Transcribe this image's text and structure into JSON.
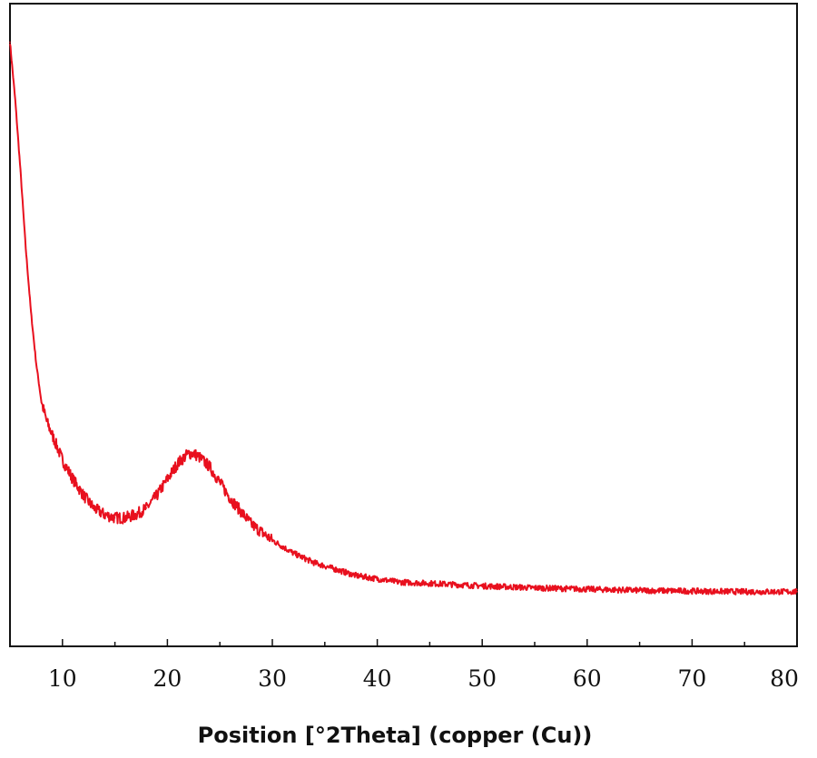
{
  "chart_data": {
    "type": "line",
    "title": "",
    "xlabel": "Position [°2Theta] (copper (Cu))",
    "ylabel": "",
    "xlim": [
      5,
      80
    ],
    "ylim": [
      0,
      100
    ],
    "x_ticks": [
      10,
      20,
      30,
      40,
      50,
      60,
      70,
      80
    ],
    "x_tick_labels": [
      "10",
      "20",
      "30",
      "40",
      "50",
      "60",
      "70",
      "80"
    ],
    "y_ticks_shown": false,
    "grid": false,
    "legend": "none",
    "series": [
      {
        "color": "#e8101e",
        "x": [
          5.0,
          5.5,
          6.0,
          6.5,
          7.0,
          7.5,
          8.0,
          8.5,
          9.0,
          9.5,
          10.0,
          11.0,
          12.0,
          13.0,
          14.0,
          15.0,
          16.0,
          17.0,
          18.0,
          19.0,
          20.0,
          21.0,
          22.0,
          22.5,
          23.0,
          24.0,
          25.0,
          26.0,
          27.0,
          28.0,
          30.0,
          32.0,
          34.0,
          36.0,
          38.0,
          40.0,
          42.0,
          45.0,
          50.0,
          55.0,
          60.0,
          65.0,
          70.0,
          75.0,
          80.0
        ],
        "y": [
          94.0,
          85.0,
          74.0,
          62.0,
          52.0,
          44.0,
          38.0,
          35.0,
          33.0,
          31.0,
          29.0,
          26.0,
          23.5,
          21.5,
          20.5,
          20.0,
          20.0,
          20.5,
          21.5,
          23.5,
          26.0,
          28.5,
          30.0,
          30.0,
          29.5,
          28.0,
          25.5,
          23.0,
          21.0,
          19.0,
          16.5,
          14.5,
          13.0,
          12.0,
          11.0,
          10.5,
          10.0,
          9.8,
          9.4,
          9.1,
          8.9,
          8.7,
          8.6,
          8.5,
          8.5
        ]
      }
    ]
  }
}
